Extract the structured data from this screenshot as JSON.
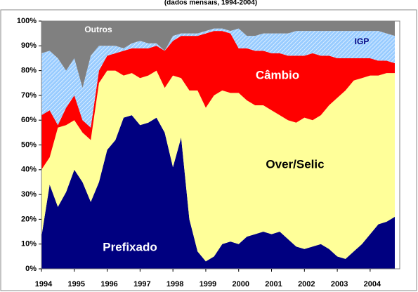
{
  "chart_data": {
    "type": "stacked_area",
    "subtitle": "(dados mensais, 1994-2004)",
    "x": [
      1994,
      1994.25,
      1994.5,
      1994.75,
      1995,
      1995.25,
      1995.5,
      1995.75,
      1996,
      1996.25,
      1996.5,
      1996.75,
      1997,
      1997.25,
      1997.5,
      1997.75,
      1998,
      1998.25,
      1998.5,
      1998.75,
      1999,
      1999.25,
      1999.5,
      1999.75,
      2000,
      2000.25,
      2000.5,
      2000.75,
      2001,
      2001.25,
      2001.5,
      2001.75,
      2002,
      2002.25,
      2002.5,
      2002.75,
      2003,
      2003.25,
      2003.5,
      2003.75,
      2004,
      2004.25,
      2004.5,
      2004.75
    ],
    "series": [
      {
        "name": "Prefixado",
        "color": "#000080",
        "values": [
          13,
          34,
          25,
          31,
          40,
          35,
          27,
          35,
          48,
          52,
          61,
          62,
          58,
          59,
          61,
          55,
          41,
          53,
          20,
          7,
          3,
          5,
          10,
          11,
          10,
          13,
          14,
          15,
          14,
          15,
          12,
          9,
          8,
          9,
          10,
          8,
          5,
          4,
          7,
          10,
          14,
          18,
          19,
          21
        ]
      },
      {
        "name": "Over/Selic",
        "color": "#ffff99",
        "values": [
          27,
          11,
          32,
          27,
          20,
          20,
          25,
          40,
          32,
          28,
          17,
          17,
          19,
          19,
          19,
          18,
          37,
          24,
          52,
          65,
          62,
          65,
          62,
          60,
          61,
          55,
          52,
          51,
          50,
          47,
          48,
          50,
          53,
          51,
          52,
          58,
          64,
          68,
          69,
          67,
          64,
          60,
          60,
          58
        ]
      },
      {
        "name": "Câmbio",
        "color": "#ff0000",
        "values": [
          22,
          19,
          1,
          7,
          10,
          5,
          5,
          5,
          6,
          7,
          10,
          10,
          12,
          11,
          10,
          15,
          14,
          17,
          22,
          22,
          30,
          26,
          24,
          24,
          18,
          21,
          22,
          22,
          23,
          25,
          26,
          27,
          25,
          27,
          24,
          20,
          16,
          13,
          9,
          8,
          7,
          6,
          5,
          4
        ]
      },
      {
        "name": "IGP",
        "color": "#99ccff",
        "values": [
          25,
          24,
          27,
          15,
          15,
          13,
          29,
          10,
          4,
          3,
          1,
          2,
          3,
          2,
          1,
          0,
          2,
          1,
          1,
          1,
          1,
          1,
          1,
          1,
          8,
          5,
          6,
          7,
          8,
          8,
          9,
          10,
          10,
          9,
          10,
          10,
          11,
          11,
          11,
          11,
          11,
          12,
          11,
          11
        ]
      },
      {
        "name": "Outros",
        "color": "#808080",
        "values": [
          13,
          12,
          15,
          20,
          15,
          27,
          14,
          10,
          10,
          10,
          11,
          9,
          8,
          9,
          9,
          12,
          6,
          5,
          5,
          5,
          4,
          3,
          3,
          4,
          3,
          6,
          6,
          5,
          5,
          5,
          5,
          4,
          4,
          4,
          4,
          4,
          4,
          4,
          4,
          4,
          4,
          4,
          5,
          6
        ]
      }
    ],
    "xlim": [
      1994,
      2004.9
    ],
    "xticks": [
      1994,
      1995,
      1996,
      1997,
      1998,
      1999,
      2000,
      2001,
      2002,
      2003,
      2004
    ],
    "ylim": [
      0,
      100
    ],
    "yticks": [
      {
        "value": 0,
        "label": "0%"
      },
      {
        "value": 10,
        "label": "10%"
      },
      {
        "value": 20,
        "label": "20%"
      },
      {
        "value": 30,
        "label": "30%"
      },
      {
        "value": 40,
        "label": "40%"
      },
      {
        "value": 50,
        "label": "50%"
      },
      {
        "value": 60,
        "label": "60%"
      },
      {
        "value": 70,
        "label": "70%"
      },
      {
        "value": 80,
        "label": "80%"
      },
      {
        "value": 90,
        "label": "90%"
      },
      {
        "value": 100,
        "label": "100%"
      }
    ]
  }
}
